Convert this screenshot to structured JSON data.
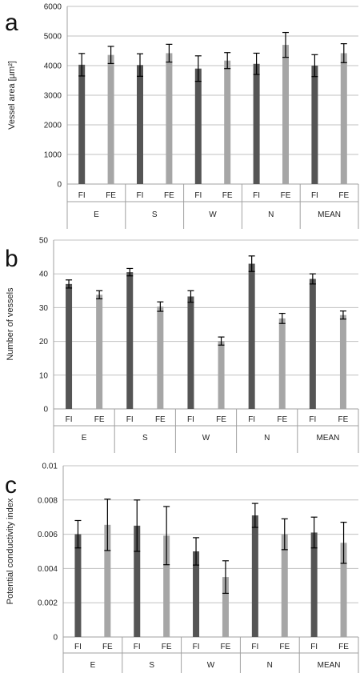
{
  "colors": {
    "dark": "#555555",
    "light": "#a6a6a6",
    "grid": "#c0c0c0",
    "axis": "#a0a0a0",
    "error": "#000000"
  },
  "chart_data": [
    {
      "panel_label": "a",
      "type": "bar",
      "ylabel": "Vessel area [µm²]",
      "ylim": [
        0,
        6000
      ],
      "yticks": [
        0,
        1000,
        2000,
        3000,
        4000,
        5000,
        6000
      ],
      "groups": [
        "E",
        "S",
        "W",
        "N",
        "MEAN"
      ],
      "subcategories": [
        "FI",
        "FE"
      ],
      "grid": true,
      "series": [
        {
          "name": "FI",
          "values": [
            4030,
            4020,
            3900,
            4060,
            4000
          ],
          "errors": [
            380,
            380,
            430,
            360,
            370
          ]
        },
        {
          "name": "FE",
          "values": [
            4360,
            4420,
            4170,
            4700,
            4420
          ],
          "errors": [
            290,
            300,
            270,
            420,
            320
          ]
        }
      ]
    },
    {
      "panel_label": "b",
      "type": "bar",
      "ylabel": "Number of vessels",
      "ylim": [
        0,
        50
      ],
      "yticks": [
        0,
        10,
        20,
        30,
        40,
        50
      ],
      "groups": [
        "E",
        "S",
        "W",
        "N",
        "MEAN"
      ],
      "subcategories": [
        "FI",
        "FE"
      ],
      "grid": true,
      "series": [
        {
          "name": "FI",
          "values": [
            37,
            40.5,
            33.3,
            43,
            38.5
          ],
          "errors": [
            1.2,
            1.1,
            1.7,
            2.3,
            1.5
          ]
        },
        {
          "name": "FE",
          "values": [
            33.8,
            30.3,
            20.1,
            26.8,
            27.8
          ],
          "errors": [
            1.2,
            1.4,
            1.2,
            1.5,
            1.2
          ]
        }
      ]
    },
    {
      "panel_label": "c",
      "type": "bar",
      "ylabel": "Potential conductivity index",
      "ylim": [
        0,
        0.01
      ],
      "yticks": [
        "0",
        "0.002",
        "0.004",
        "0.006",
        "0.008",
        "0.01"
      ],
      "groups": [
        "E",
        "S",
        "W",
        "N",
        "MEAN"
      ],
      "subcategories": [
        "FI",
        "FE"
      ],
      "grid": true,
      "series": [
        {
          "name": "FI",
          "values": [
            0.006,
            0.0065,
            0.005,
            0.0071,
            0.0061
          ],
          "errors": [
            0.0008,
            0.0015,
            0.0008,
            0.0007,
            0.0009
          ]
        },
        {
          "name": "FE",
          "values": [
            0.00655,
            0.00592,
            0.0035,
            0.006,
            0.0055
          ],
          "errors": [
            0.0015,
            0.0017,
            0.00095,
            0.0009,
            0.0012
          ]
        }
      ]
    }
  ]
}
